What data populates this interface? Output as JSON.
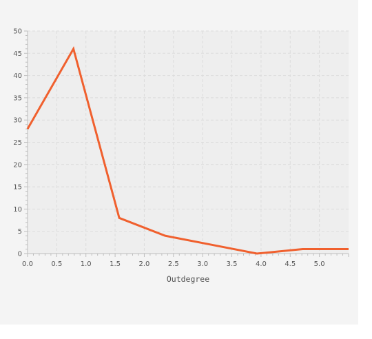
{
  "chart_data": {
    "type": "line",
    "title": "",
    "xlabel": "Outdegree",
    "ylabel": "",
    "xlim": [
      0,
      5.5
    ],
    "ylim": [
      0,
      50
    ],
    "x_ticks": [
      "0.0",
      "0.5",
      "1.0",
      "1.5",
      "2.0",
      "2.5",
      "3.0",
      "3.5",
      "4.0",
      "4.5",
      "5.0"
    ],
    "y_ticks": [
      "0",
      "5",
      "10",
      "15",
      "20",
      "25",
      "30",
      "35",
      "40",
      "45",
      "50"
    ],
    "grid": true,
    "legend": "none",
    "series": [
      {
        "color": "#f0602e",
        "x": [
          0,
          0.786,
          1.571,
          2.357,
          3.143,
          3.929,
          4.714,
          5.5
        ],
        "y": [
          28,
          46,
          8,
          4,
          2,
          0,
          1,
          1
        ]
      }
    ]
  }
}
